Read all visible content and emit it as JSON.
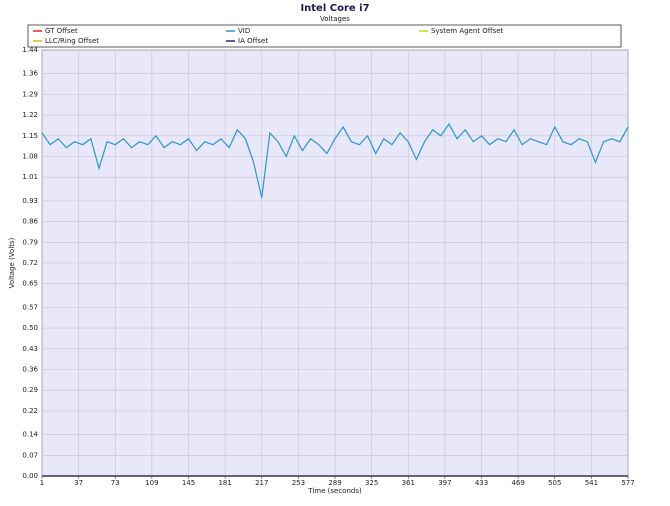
{
  "chart_data": {
    "type": "line",
    "title": "Intel Core i7",
    "subtitle": "Voltages",
    "x_label": "Time (seconds)",
    "y_label": "Voltage (Volts)",
    "x": [
      1,
      9,
      17,
      25,
      33,
      41,
      49,
      57,
      65,
      73,
      81,
      89,
      97,
      105,
      113,
      121,
      129,
      137,
      145,
      153,
      161,
      169,
      177,
      185,
      193,
      201,
      209,
      217,
      225,
      233,
      241,
      249,
      257,
      265,
      273,
      281,
      289,
      297,
      305,
      313,
      321,
      329,
      337,
      345,
      353,
      361,
      369,
      377,
      385,
      393,
      401,
      409,
      417,
      425,
      433,
      441,
      449,
      457,
      465,
      473,
      481,
      489,
      497,
      505,
      513,
      521,
      529,
      537,
      545,
      553,
      561,
      569,
      577
    ],
    "series": [
      {
        "name": "GT Offset",
        "color": "#e8231f",
        "values": [
          0,
          0,
          0,
          0,
          0,
          0,
          0,
          0,
          0,
          0,
          0,
          0,
          0,
          0,
          0,
          0,
          0,
          0,
          0,
          0,
          0,
          0,
          0,
          0,
          0,
          0,
          0,
          0,
          0,
          0,
          0,
          0,
          0,
          0,
          0,
          0,
          0,
          0,
          0,
          0,
          0,
          0,
          0,
          0,
          0,
          0,
          0,
          0,
          0,
          0,
          0,
          0,
          0,
          0,
          0,
          0,
          0,
          0,
          0,
          0,
          0,
          0,
          0,
          0,
          0,
          0,
          0,
          0,
          0,
          0,
          0,
          0,
          0
        ]
      },
      {
        "name": "VID",
        "color": "#2b95d3",
        "values": [
          1.16,
          1.12,
          1.14,
          1.11,
          1.13,
          1.12,
          1.14,
          1.04,
          1.13,
          1.12,
          1.14,
          1.11,
          1.13,
          1.12,
          1.15,
          1.11,
          1.13,
          1.12,
          1.14,
          1.1,
          1.13,
          1.12,
          1.14,
          1.11,
          1.17,
          1.14,
          1.06,
          0.94,
          1.16,
          1.13,
          1.08,
          1.15,
          1.1,
          1.14,
          1.12,
          1.09,
          1.14,
          1.18,
          1.13,
          1.12,
          1.15,
          1.09,
          1.14,
          1.12,
          1.16,
          1.13,
          1.07,
          1.13,
          1.17,
          1.15,
          1.19,
          1.14,
          1.17,
          1.13,
          1.15,
          1.12,
          1.14,
          1.13,
          1.17,
          1.12,
          1.14,
          1.13,
          1.12,
          1.18,
          1.13,
          1.12,
          1.14,
          1.13,
          1.06,
          1.13,
          1.14,
          1.13,
          1.18
        ]
      },
      {
        "name": "System Agent Offset",
        "color": "#c9d41a",
        "values": [
          0,
          0,
          0,
          0,
          0,
          0,
          0,
          0,
          0,
          0,
          0,
          0,
          0,
          0,
          0,
          0,
          0,
          0,
          0,
          0,
          0,
          0,
          0,
          0,
          0,
          0,
          0,
          0,
          0,
          0,
          0,
          0,
          0,
          0,
          0,
          0,
          0,
          0,
          0,
          0,
          0,
          0,
          0,
          0,
          0,
          0,
          0,
          0,
          0,
          0,
          0,
          0,
          0,
          0,
          0,
          0,
          0,
          0,
          0,
          0,
          0,
          0,
          0,
          0,
          0,
          0,
          0,
          0,
          0,
          0,
          0,
          0,
          0
        ]
      },
      {
        "name": "LLC/Ring Offset",
        "color": "#e2b21c",
        "values": [
          0,
          0,
          0,
          0,
          0,
          0,
          0,
          0,
          0,
          0,
          0,
          0,
          0,
          0,
          0,
          0,
          0,
          0,
          0,
          0,
          0,
          0,
          0,
          0,
          0,
          0,
          0,
          0,
          0,
          0,
          0,
          0,
          0,
          0,
          0,
          0,
          0,
          0,
          0,
          0,
          0,
          0,
          0,
          0,
          0,
          0,
          0,
          0,
          0,
          0,
          0,
          0,
          0,
          0,
          0,
          0,
          0,
          0,
          0,
          0,
          0,
          0,
          0,
          0,
          0,
          0,
          0,
          0,
          0,
          0,
          0,
          0,
          0
        ]
      },
      {
        "name": "IA Offset",
        "color": "#1c2a7a",
        "values": [
          0,
          0,
          0,
          0,
          0,
          0,
          0,
          0,
          0,
          0,
          0,
          0,
          0,
          0,
          0,
          0,
          0,
          0,
          0,
          0,
          0,
          0,
          0,
          0,
          0,
          0,
          0,
          0,
          0,
          0,
          0,
          0,
          0,
          0,
          0,
          0,
          0,
          0,
          0,
          0,
          0,
          0,
          0,
          0,
          0,
          0,
          0,
          0,
          0,
          0,
          0,
          0,
          0,
          0,
          0,
          0,
          0,
          0,
          0,
          0,
          0,
          0,
          0,
          0,
          0,
          0,
          0,
          0,
          0,
          0,
          0,
          0,
          0
        ]
      }
    ],
    "xlim": [
      1,
      577
    ],
    "xticks": [
      1,
      37,
      73,
      109,
      145,
      181,
      217,
      253,
      289,
      325,
      361,
      397,
      433,
      469,
      505,
      541,
      577
    ],
    "ylim": [
      0,
      1.44
    ],
    "yticks": [
      {
        "value": 0,
        "label": "0.00"
      },
      0.07,
      0.14,
      0.22,
      0.29,
      0.36,
      0.43,
      {
        "value": 0.5,
        "label": "0.50"
      },
      0.57,
      0.65,
      0.72,
      0.79,
      0.86,
      0.93,
      1.01,
      1.08,
      1.15,
      1.22,
      1.29,
      1.36,
      1.44
    ],
    "grid": true
  }
}
